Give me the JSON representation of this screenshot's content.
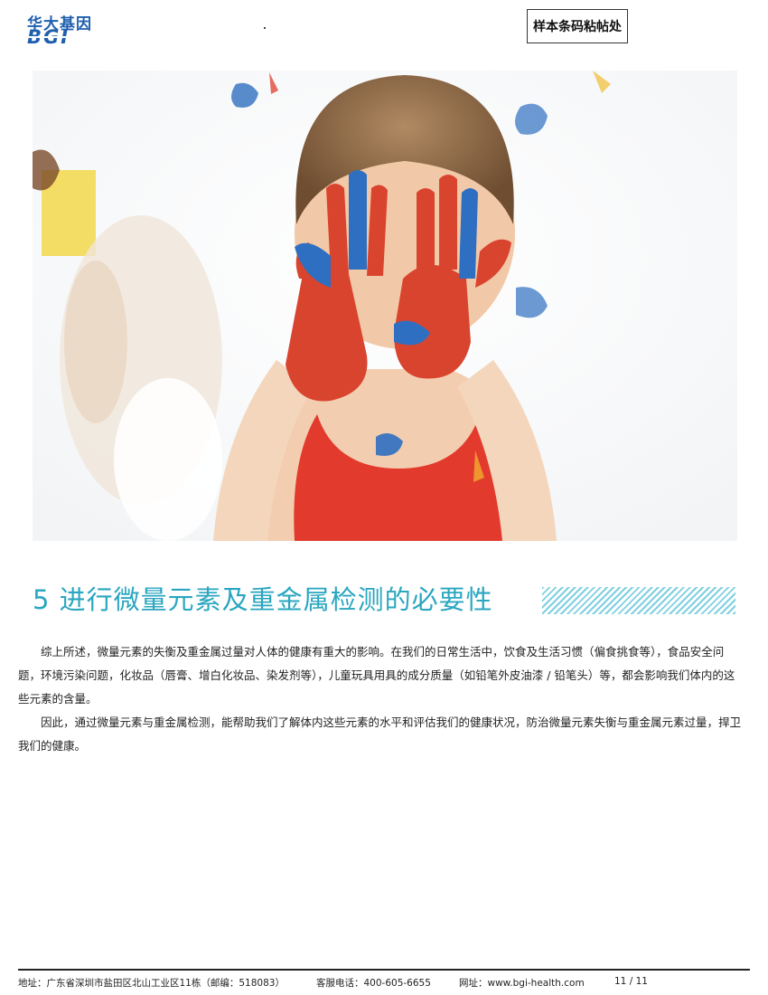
{
  "header": {
    "logo_cn": "华大基因",
    "logo_en": "BGI",
    "barcode_label": "样本条码粘帖处"
  },
  "photo": {
    "subject": "child-painted-hands"
  },
  "section": {
    "title": "5 进行微量元素及重金属检测的必要性",
    "paragraphs": [
      "综上所述，微量元素的失衡及重金属过量对人体的健康有重大的影响。在我们的日常生活中，饮食及生活习惯（偏食挑食等），食品安全问题，环境污染问题，化妆品（唇膏、增白化妆品、染发剂等），儿童玩具用具的成分质量（如铅笔外皮油漆 / 铅笔头）等，都会影响我们体内的这些元素的含量。",
      "因此，通过微量元素与重金属检测，能帮助我们了解体内这些元素的水平和评估我们的健康状况，防治微量元素失衡与重金属元素过量，捍卫我们的健康。"
    ]
  },
  "footer": {
    "address": "地址：广东省深圳市盐田区北山工业区11栋（邮编：518083）",
    "phone": "客服电话：400-605-6655",
    "website": "网址：www.bgi-health.com",
    "page": "11 / 11"
  },
  "colors": {
    "accent": "#2aa6c0",
    "logo": "#1f5fae",
    "hatch": "#7fd0e0"
  }
}
